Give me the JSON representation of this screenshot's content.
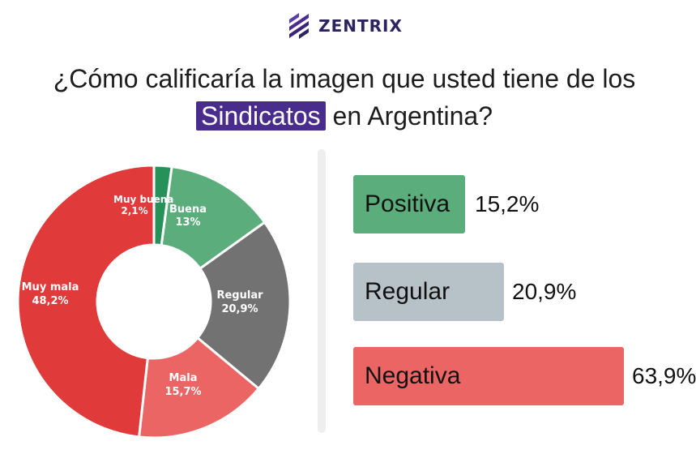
{
  "brand": {
    "name": "ZENTRIX",
    "logo_icon": "zentrix-logo-icon",
    "color": "#2b2460"
  },
  "title": {
    "line1": "¿Cómo calificaría la imagen que usted tiene de los",
    "highlight": "Sindicatos",
    "line2_rest": " en Argentina?",
    "highlight_color": "#4a2c8c"
  },
  "chart_data": [
    {
      "type": "pie",
      "variant": "donut",
      "title": "",
      "categories": [
        "Muy buena",
        "Buena",
        "Regular",
        "Mala",
        "Muy mala"
      ],
      "values": [
        2.1,
        13,
        20.9,
        15.7,
        48.2
      ],
      "value_labels": [
        "2,1%",
        "13%",
        "20,9%",
        "15,7%",
        "48,2%"
      ],
      "colors": [
        "#27915a",
        "#5bae7c",
        "#727272",
        "#ec6565",
        "#e03a3a"
      ],
      "start": "top, clockwise"
    },
    {
      "type": "bar",
      "orientation": "horizontal",
      "title": "",
      "categories": [
        "Positiva",
        "Regular",
        "Negativa"
      ],
      "values": [
        15.2,
        20.9,
        63.9
      ],
      "value_labels": [
        "15,2%",
        "20,9%",
        "63,9%"
      ],
      "colors": [
        "#5bae7c",
        "#b7c2c8",
        "#ec6565"
      ]
    }
  ]
}
